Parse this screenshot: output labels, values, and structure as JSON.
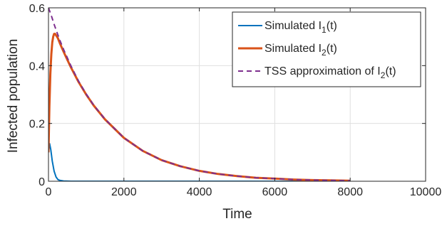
{
  "chart_data": {
    "type": "line",
    "title": "",
    "xlabel": "Time",
    "ylabel": "Infected population",
    "xlim": [
      0,
      10000
    ],
    "ylim": [
      0,
      0.6
    ],
    "xticks": [
      0,
      2000,
      4000,
      6000,
      8000,
      10000
    ],
    "xtick_labels": [
      "0",
      "2000",
      "4000",
      "6000",
      "8000",
      "10000"
    ],
    "yticks": [
      0,
      0.2,
      0.4,
      0.6
    ],
    "ytick_labels": [
      "0",
      "0.2",
      "0.4",
      "0.6"
    ],
    "grid": true,
    "legend_position": "top-right",
    "series": [
      {
        "name_prefix": "Simulated I",
        "name_sub": "1",
        "name_suffix": "(t)",
        "color": "#0072BD",
        "style": "solid",
        "x": [
          0,
          30,
          60,
          100,
          150,
          200,
          250,
          300,
          400,
          600,
          1000,
          2000,
          3000,
          4000,
          5000,
          6000,
          7000,
          8000
        ],
        "y": [
          0.1,
          0.13,
          0.11,
          0.07,
          0.035,
          0.015,
          0.006,
          0.003,
          0.001,
          0,
          0,
          0,
          0,
          0,
          0,
          0,
          0,
          0
        ]
      },
      {
        "name_prefix": "Simulated I",
        "name_sub": "2",
        "name_suffix": "(t)",
        "color": "#D95319",
        "style": "solid",
        "x": [
          0,
          25,
          50,
          75,
          100,
          125,
          150,
          175,
          200,
          250,
          300,
          400,
          500,
          600,
          800,
          1000,
          1200,
          1500,
          2000,
          2500,
          3000,
          3500,
          4000,
          4500,
          5000,
          5500,
          6000,
          6500,
          7000,
          7500,
          8000
        ],
        "y": [
          0.1,
          0.26,
          0.37,
          0.44,
          0.48,
          0.5,
          0.51,
          0.51,
          0.505,
          0.495,
          0.478,
          0.448,
          0.42,
          0.393,
          0.343,
          0.3,
          0.262,
          0.214,
          0.15,
          0.105,
          0.073,
          0.052,
          0.036,
          0.025,
          0.018,
          0.012,
          0.009,
          0.006,
          0.004,
          0.003,
          0.002
        ]
      },
      {
        "name_prefix": "TSS approximation of I",
        "name_sub": "2",
        "name_suffix": "(t)",
        "color": "#7E2F8E",
        "style": "dashed",
        "x": [
          0,
          50,
          100,
          150,
          200,
          300,
          400,
          500,
          600,
          800,
          1000,
          1200,
          1500,
          2000,
          2500,
          3000,
          3500,
          4000,
          4500,
          5000,
          5500,
          6000,
          6500,
          7000,
          7500,
          8000
        ],
        "y": [
          0.6,
          0.583,
          0.563,
          0.543,
          0.524,
          0.488,
          0.456,
          0.427,
          0.398,
          0.346,
          0.302,
          0.263,
          0.215,
          0.15,
          0.105,
          0.073,
          0.052,
          0.036,
          0.025,
          0.018,
          0.012,
          0.009,
          0.006,
          0.004,
          0.003,
          0.002
        ]
      }
    ]
  },
  "colors": {
    "axis": "#262626",
    "grid": "#dfdfdf",
    "background": "#ffffff"
  }
}
